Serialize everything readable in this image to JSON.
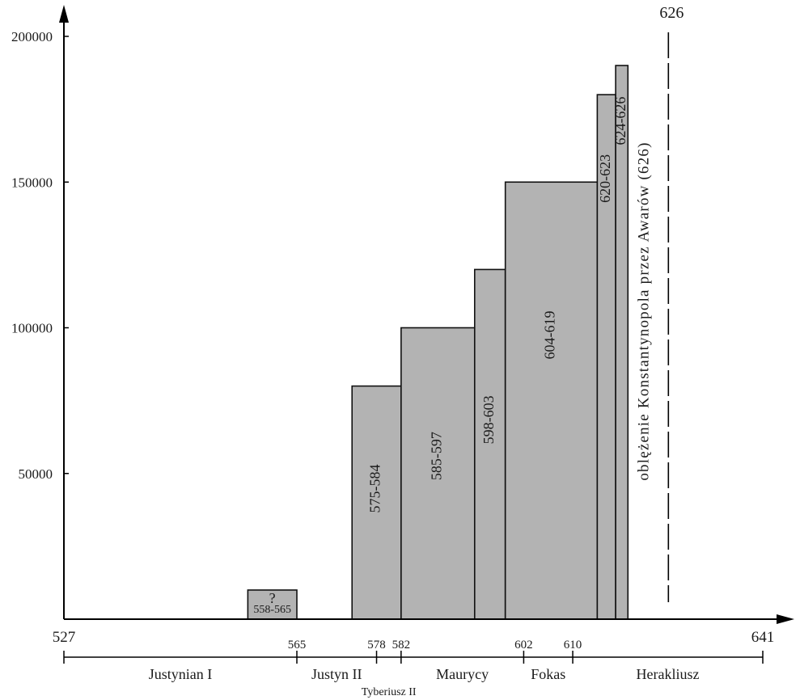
{
  "chart_data": {
    "type": "bar",
    "xlim": [
      527,
      641
    ],
    "ylim": [
      0,
      200000
    ],
    "x_ticks": [
      527,
      565,
      578,
      582,
      602,
      610,
      641
    ],
    "y_ticks": [
      50000,
      100000,
      150000,
      200000
    ],
    "bars": [
      {
        "start": 557,
        "end": 565,
        "value": 10000,
        "label": "558-565",
        "note": "?"
      },
      {
        "start": 574,
        "end": 582,
        "value": 80000,
        "label": "575-584"
      },
      {
        "start": 582,
        "end": 594,
        "value": 100000,
        "label": "585-597"
      },
      {
        "start": 594,
        "end": 599,
        "value": 120000,
        "label": "598-603"
      },
      {
        "start": 599,
        "end": 614,
        "value": 150000,
        "label": "604-619"
      },
      {
        "start": 614,
        "end": 617,
        "value": 180000,
        "label": "620-623"
      },
      {
        "start": 617,
        "end": 619,
        "value": 190000,
        "label": "624-626"
      }
    ],
    "siege": {
      "year": 626,
      "year_label": "626",
      "label": "oblężenie Konstantynopola przez Awarów (626)"
    },
    "reigns": [
      {
        "name": "Justynian I",
        "from": 527,
        "to": 565
      },
      {
        "name": "Justyn II",
        "from": 565,
        "to": 578
      },
      {
        "name": "Tyberiusz II",
        "from": 578,
        "to": 582
      },
      {
        "name": "Maurycy",
        "from": 582,
        "to": 602
      },
      {
        "name": "Fokas",
        "from": 602,
        "to": 610
      },
      {
        "name": "Herakliusz",
        "from": 610,
        "to": 641
      }
    ],
    "colors": {
      "bar_fill": "#b3b3b3",
      "bar_stroke": "#111111",
      "axis": "#000000"
    }
  }
}
